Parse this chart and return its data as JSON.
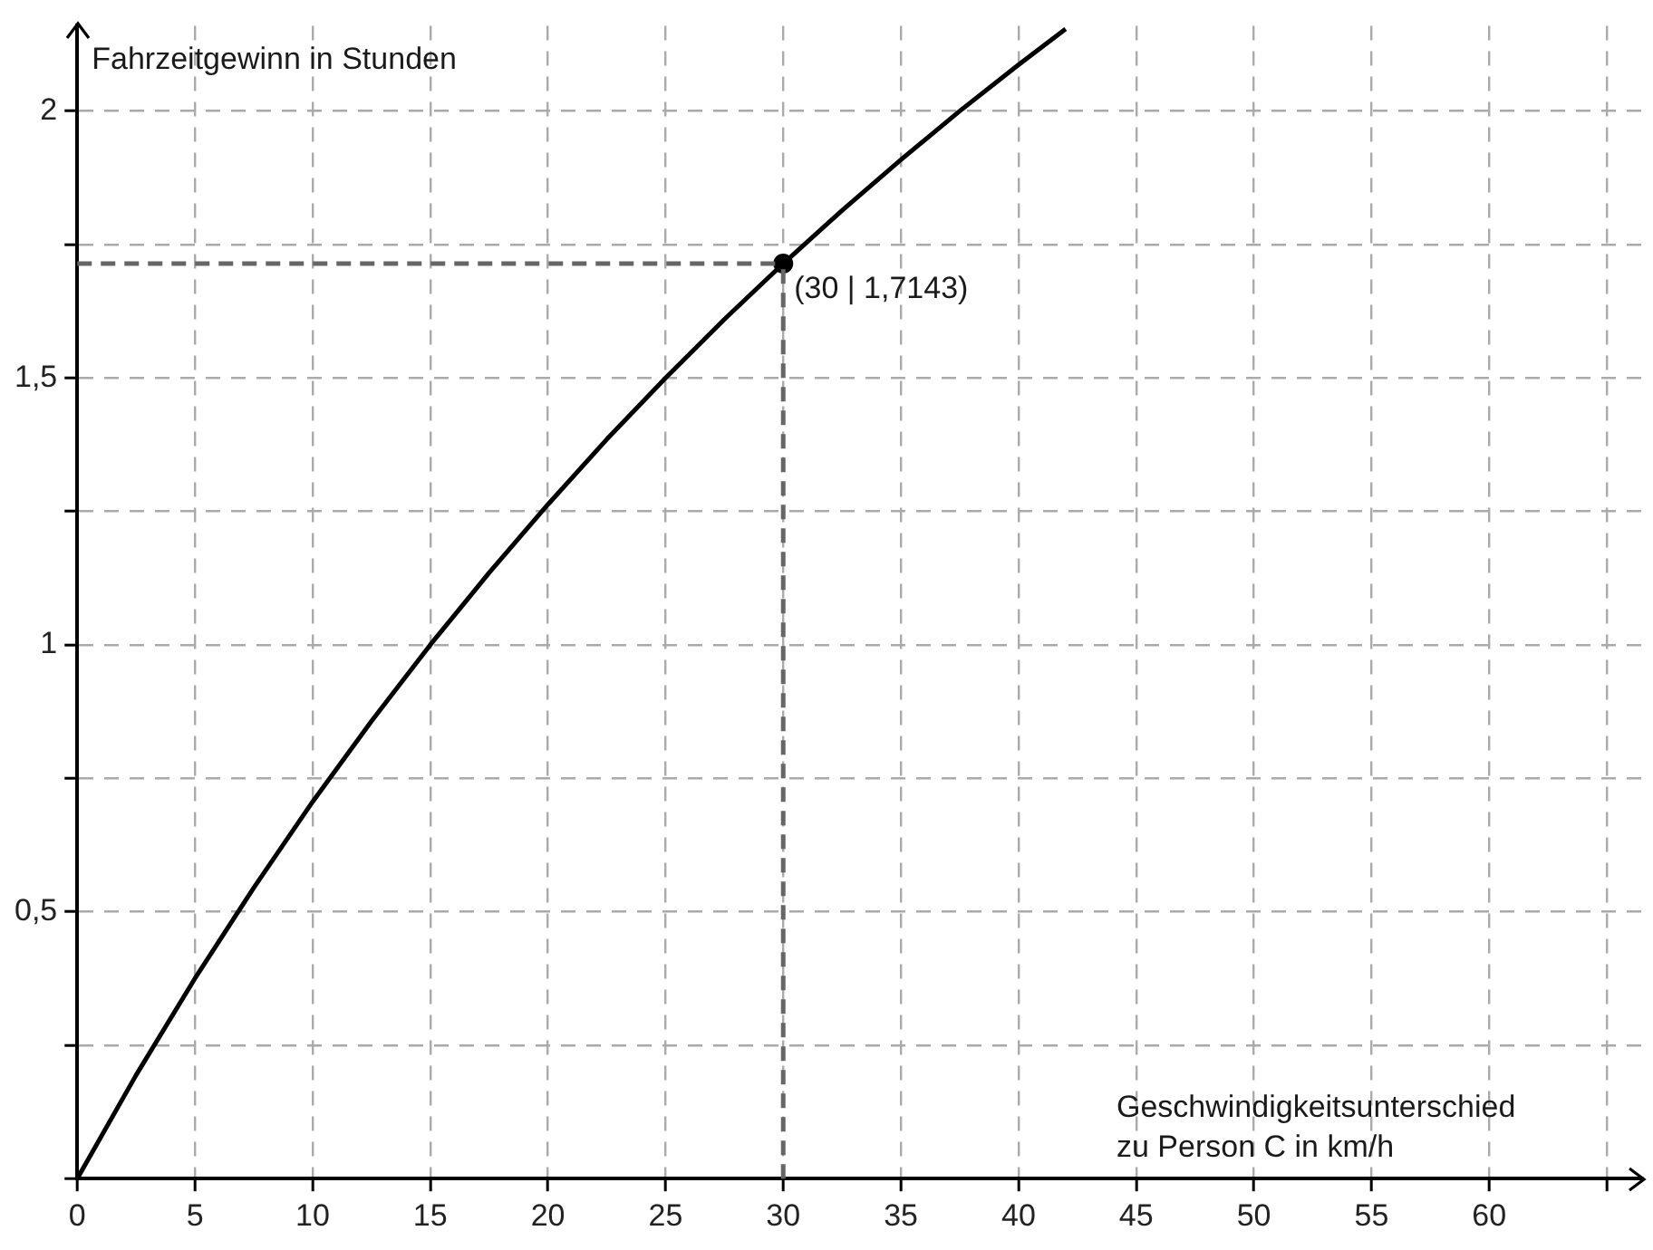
{
  "chart_data": {
    "type": "line",
    "xlabel": "Geschwindigkeitsunterschied zu Person C in km/h",
    "ylabel": "Fahrzeitgewinn in Stunden",
    "x": [
      0,
      2.5,
      5,
      7.5,
      10,
      12.5,
      15,
      17.5,
      20,
      22.5,
      25,
      27.5,
      30,
      32.5,
      35,
      37.5,
      40,
      42
    ],
    "series": [
      {
        "color": "#000000",
        "marker": "none",
        "values": [
          0,
          0.194,
          0.375,
          0.545,
          0.706,
          0.857,
          1,
          1.135,
          1.263,
          1.385,
          1.5,
          1.61,
          1.7143,
          1.814,
          1.909,
          2,
          2.087,
          2.154
        ]
      },
      {
        "type": "scatter",
        "color": "#000000",
        "marker": "circle",
        "x": [
          30
        ],
        "values": [
          1.7143
        ]
      }
    ],
    "xlim": [
      0,
      66.5
    ],
    "ylim": [
      0,
      2.16
    ],
    "xticks": [
      0,
      5,
      10,
      15,
      20,
      25,
      30,
      35,
      40,
      45,
      50,
      55,
      60,
      {
        "value": 65,
        "label": null
      }
    ],
    "yticks": [
      {
        "value": 0,
        "label": null
      },
      {
        "value": 0.25,
        "label": null
      },
      {
        "value": 0.5,
        "label": "0,5"
      },
      {
        "value": 0.75,
        "label": null
      },
      1,
      {
        "value": 1.25,
        "label": null
      },
      {
        "value": 1.5,
        "label": "1,5"
      },
      {
        "value": 1.75,
        "label": null
      },
      2
    ],
    "ref_lines": [
      {
        "axis": "x",
        "value": 30,
        "color": "#666666",
        "line_style": "dashed"
      },
      {
        "axis": "y",
        "value": 1.7143,
        "color": "#666666",
        "line_style": "dashed"
      }
    ],
    "annotations": [
      {
        "text": "(30 | 1,7143)",
        "x": 30,
        "y": 1.7143
      }
    ],
    "grid": true,
    "legend": false
  }
}
